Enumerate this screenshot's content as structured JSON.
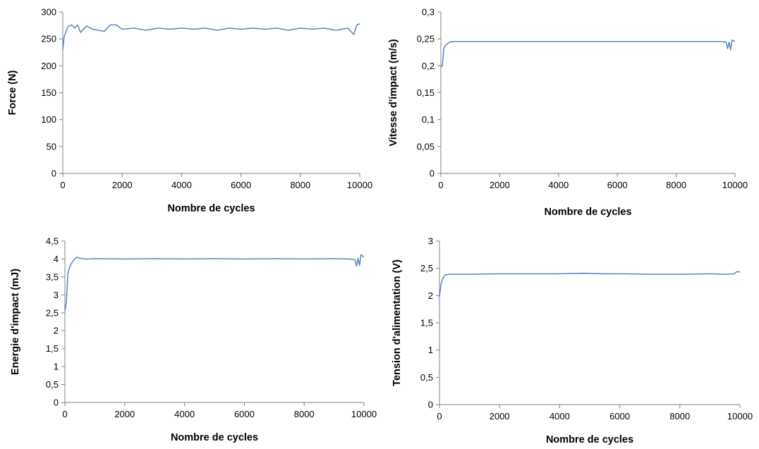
{
  "colors": {
    "line": "#4A7EBB",
    "axis": "#808080",
    "text": "#000000"
  },
  "chart_data": [
    {
      "type": "line",
      "xlabel": "Nombre de cycles",
      "ylabel": "Force (N)",
      "xlim": [
        0,
        10000
      ],
      "ylim": [
        0,
        300
      ],
      "xticks": [
        0,
        2000,
        4000,
        6000,
        8000,
        10000
      ],
      "yticks": [
        0,
        50,
        100,
        150,
        200,
        250,
        300
      ],
      "xtick_labels": [
        "0",
        "2000",
        "4000",
        "6000",
        "8000",
        "10000"
      ],
      "ytick_labels": [
        "0",
        "50",
        "100",
        "150",
        "200",
        "250",
        "300"
      ],
      "grid": false,
      "legend": "none",
      "series": [
        {
          "x": [
            0,
            50,
            100,
            150,
            200,
            300,
            400,
            500,
            600,
            800,
            1000,
            1200,
            1400,
            1600,
            1800,
            2000,
            2400,
            2800,
            3200,
            3600,
            4000,
            4400,
            4800,
            5200,
            5600,
            6000,
            6400,
            6800,
            7200,
            7600,
            8000,
            8400,
            8800,
            9200,
            9600,
            9800,
            9900,
            10000
          ],
          "values": [
            230,
            255,
            262,
            270,
            274,
            276,
            270,
            276,
            262,
            274,
            268,
            266,
            264,
            276,
            276,
            268,
            270,
            266,
            270,
            268,
            270,
            268,
            270,
            266,
            270,
            268,
            270,
            268,
            270,
            266,
            270,
            268,
            270,
            266,
            270,
            258,
            276,
            278
          ]
        }
      ]
    },
    {
      "type": "line",
      "xlabel": "Nombre de cycles",
      "ylabel": "Vitesse d'impact (m/s)",
      "xlim": [
        0,
        10000
      ],
      "ylim": [
        0,
        0.3
      ],
      "xticks": [
        0,
        2000,
        4000,
        6000,
        8000,
        10000
      ],
      "yticks": [
        0,
        0.05,
        0.1,
        0.15,
        0.2,
        0.25,
        0.3
      ],
      "xtick_labels": [
        "0",
        "2000",
        "4000",
        "6000",
        "8000",
        "10000"
      ],
      "ytick_labels": [
        "0",
        "0,05",
        "0,1",
        "0,15",
        "0,2",
        "0,25",
        "0,3"
      ],
      "grid": false,
      "legend": "none",
      "series": [
        {
          "x": [
            0,
            50,
            100,
            150,
            200,
            300,
            400,
            600,
            1000,
            2000,
            3000,
            4000,
            5000,
            6000,
            7000,
            8000,
            9000,
            9500,
            9700,
            9750,
            9800,
            9850,
            9900,
            10000
          ],
          "values": [
            0.198,
            0.2,
            0.232,
            0.238,
            0.24,
            0.244,
            0.245,
            0.245,
            0.245,
            0.245,
            0.245,
            0.245,
            0.245,
            0.245,
            0.245,
            0.245,
            0.245,
            0.245,
            0.244,
            0.232,
            0.244,
            0.23,
            0.248,
            0.245
          ]
        }
      ]
    },
    {
      "type": "line",
      "xlabel": "Nombre de cycles",
      "ylabel": "Energie d'impact (mJ)",
      "xlim": [
        0,
        10000
      ],
      "ylim": [
        0,
        4.5
      ],
      "xticks": [
        0,
        2000,
        4000,
        6000,
        8000,
        10000
      ],
      "yticks": [
        0,
        0.5,
        1,
        1.5,
        2,
        2.5,
        3,
        3.5,
        4,
        4.5
      ],
      "xtick_labels": [
        "0",
        "2000",
        "4000",
        "6000",
        "8000",
        "10000"
      ],
      "ytick_labels": [
        "0",
        "0,5",
        "1",
        "1,5",
        "2",
        "2,5",
        "3",
        "3,5",
        "4",
        "4,5"
      ],
      "grid": false,
      "legend": "none",
      "series": [
        {
          "x": [
            0,
            50,
            100,
            150,
            200,
            300,
            400,
            500,
            700,
            1000,
            2000,
            3000,
            4000,
            5000,
            6000,
            7000,
            8000,
            9000,
            9500,
            9700,
            9750,
            9800,
            9850,
            9900,
            10000
          ],
          "values": [
            2.55,
            2.8,
            3.6,
            3.75,
            3.85,
            3.98,
            4.05,
            4.02,
            4.0,
            4.01,
            4.0,
            4.01,
            4.0,
            4.01,
            4.0,
            4.01,
            4.0,
            4.01,
            4.0,
            3.98,
            3.8,
            4.02,
            3.82,
            4.12,
            4.05
          ]
        }
      ]
    },
    {
      "type": "line",
      "xlabel": "Nombre de cycles",
      "ylabel": "Tension d'alimentation (V)",
      "xlim": [
        0,
        10000
      ],
      "ylim": [
        0,
        3
      ],
      "xticks": [
        0,
        2000,
        4000,
        6000,
        8000,
        10000
      ],
      "yticks": [
        0,
        0.5,
        1,
        1.5,
        2,
        2.5,
        3
      ],
      "xtick_labels": [
        "0",
        "2000",
        "4000",
        "6000",
        "8000",
        "10000"
      ],
      "ytick_labels": [
        "0",
        "0,5",
        "1",
        "1,5",
        "2",
        "2,5",
        "3"
      ],
      "grid": false,
      "legend": "none",
      "series": [
        {
          "x": [
            0,
            50,
            100,
            150,
            200,
            300,
            400,
            600,
            1000,
            2000,
            3000,
            4000,
            4800,
            5500,
            6000,
            7000,
            8000,
            9000,
            9500,
            9800,
            9900,
            10000
          ],
          "values": [
            1.98,
            2.2,
            2.3,
            2.35,
            2.38,
            2.39,
            2.39,
            2.39,
            2.39,
            2.4,
            2.4,
            2.4,
            2.41,
            2.4,
            2.4,
            2.39,
            2.39,
            2.4,
            2.39,
            2.4,
            2.44,
            2.43
          ]
        }
      ]
    }
  ]
}
